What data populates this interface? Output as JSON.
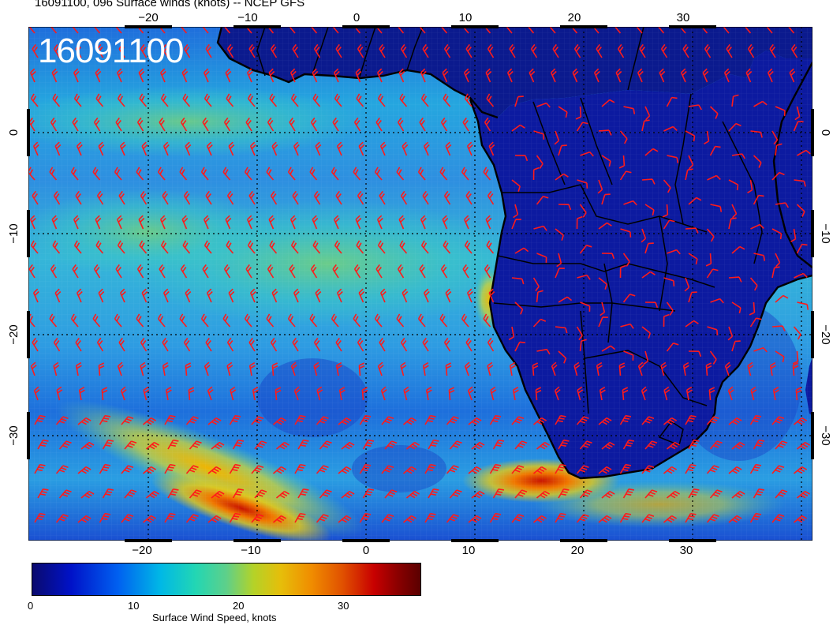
{
  "title": "16091100, 096 Surface winds (knots) -- NCEP GFS",
  "date_stamp": "16091100",
  "longitude_ticks": [
    "−20",
    "−10",
    "0",
    "10",
    "20",
    "30"
  ],
  "latitude_ticks": [
    "0",
    "−10",
    "−20",
    "−30"
  ],
  "colorbar": {
    "label": "Surface Wind Speed, knots",
    "ticks": [
      "0",
      "10",
      "20",
      "30"
    ],
    "range": [
      0,
      37
    ]
  },
  "colors": {
    "barb": "#ff1a1a",
    "coast": "#000000",
    "ocean_low": "#0020c8",
    "ocean_mid": "#28c8d2",
    "ocean_high": "#e0c814",
    "land": "#0a1480",
    "jet": "#d22800"
  }
}
